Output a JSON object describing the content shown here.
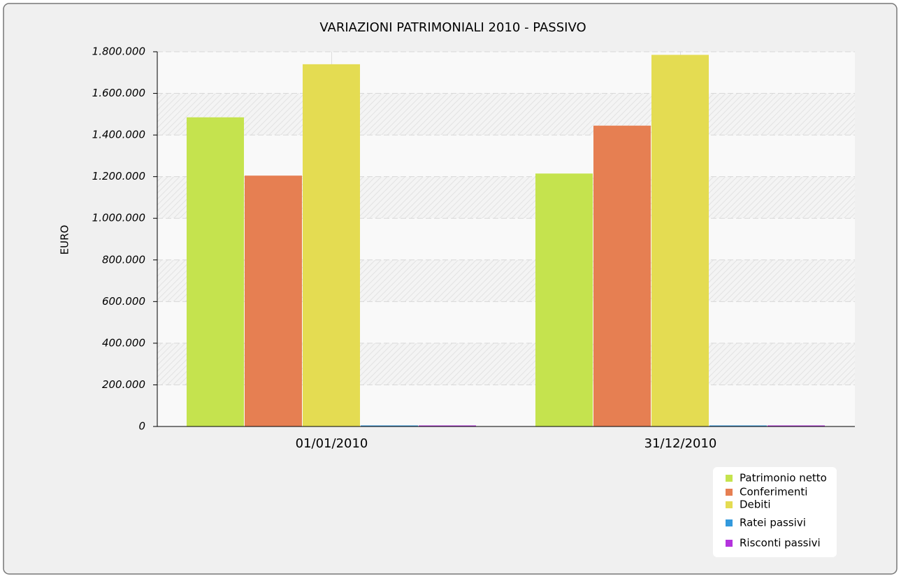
{
  "chart_data": {
    "type": "bar",
    "title": "VARIAZIONI PATRIMONIALI 2010 - PASSIVO",
    "y_label": "EURO",
    "categories": [
      "01/01/2010",
      "31/12/2010"
    ],
    "series": [
      {
        "name": "Patrimonio netto",
        "color": "#c5e34e",
        "values": [
          1485000,
          1215000
        ]
      },
      {
        "name": "Conferimenti",
        "color": "#e67f52",
        "values": [
          1205000,
          1445000
        ]
      },
      {
        "name": "Debiti",
        "color": "#e4dc52",
        "values": [
          1740000,
          1785000
        ]
      },
      {
        "name": "Ratei passivi",
        "color": "#3399dd",
        "values": [
          5000,
          5000
        ]
      },
      {
        "name": "Risconti passivi",
        "color": "#b433dd",
        "values": [
          5000,
          5000
        ]
      }
    ],
    "ylim": [
      0,
      1800000
    ],
    "yticks": [
      0,
      {
        "value": 200000,
        "label": "200.000"
      },
      {
        "value": 400000,
        "label": "400.000"
      },
      {
        "value": 600000,
        "label": "600.000"
      },
      {
        "value": 800000,
        "label": "800.000"
      },
      {
        "value": 1000000,
        "label": "1.000.000"
      },
      {
        "value": 1200000,
        "label": "1.200.000"
      },
      {
        "value": 1400000,
        "label": "1.400.000"
      },
      {
        "value": 1600000,
        "label": "1.600.000"
      },
      {
        "value": 1800000,
        "label": "1.800.000"
      }
    ],
    "grid": true,
    "legend": "bottom-right"
  }
}
